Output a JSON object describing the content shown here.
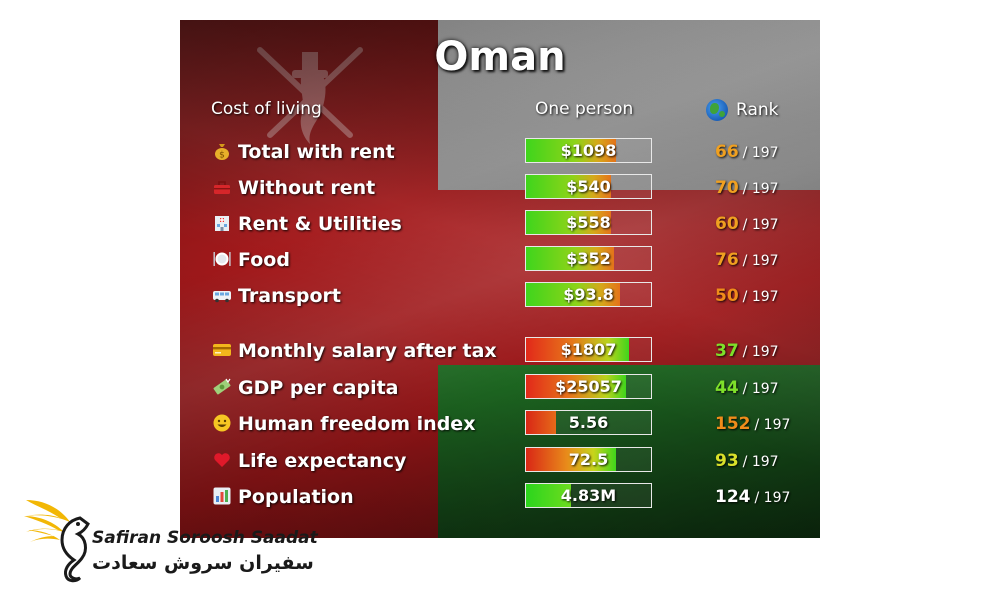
{
  "title": "Oman",
  "headers": {
    "cost_of_living": "Cost of living",
    "one_person": "One person",
    "rank": "Rank"
  },
  "rank_total": "/ 197",
  "rows": [
    {
      "label": "Total with rent",
      "icon": "money-bag-icon",
      "value": "$1098",
      "rank": "66",
      "rank_color": "#f0a020",
      "fill_pct": 72,
      "fill": "cost"
    },
    {
      "label": "Without rent",
      "icon": "toolbox-icon",
      "value": "$540",
      "rank": "70",
      "rank_color": "#f0a020",
      "fill_pct": 68,
      "fill": "cost"
    },
    {
      "label": "Rent & Utilities",
      "icon": "building-icon",
      "value": "$558",
      "rank": "60",
      "rank_color": "#f0a020",
      "fill_pct": 68,
      "fill": "cost"
    },
    {
      "label": "Food",
      "icon": "plate-icon",
      "value": "$352",
      "rank": "76",
      "rank_color": "#f0a020",
      "fill_pct": 70,
      "fill": "cost"
    },
    {
      "label": "Transport",
      "icon": "bus-icon",
      "value": "$93.8",
      "rank": "50",
      "rank_color": "#f08c1a",
      "fill_pct": 75,
      "fill": "cost"
    },
    {
      "label": "Monthly salary after tax",
      "icon": "credit-card-icon",
      "value": "$1807",
      "rank": "37",
      "rank_color": "#7ee02a",
      "fill_pct": 82,
      "fill": "sal"
    },
    {
      "label": "GDP per capita",
      "icon": "money-icon",
      "value": "$25057",
      "rank": "44",
      "rank_color": "#7ee02a",
      "fill_pct": 80,
      "fill": "sal"
    },
    {
      "label": "Human freedom index",
      "icon": "smiley-icon",
      "value": "5.56",
      "rank": "152",
      "rank_color": "#f08c1a",
      "fill_pct": 24,
      "fill": "hfi"
    },
    {
      "label": "Life expectancy",
      "icon": "heart-icon",
      "value": "72.5",
      "rank": "93",
      "rank_color": "#d9e02a",
      "fill_pct": 72,
      "fill": "life"
    },
    {
      "label": "Population",
      "icon": "bar-chart-icon",
      "value": "4.83M",
      "rank": "124",
      "rank_color": "#ffffff",
      "fill_pct": 36,
      "fill": "pop"
    }
  ],
  "logo": {
    "latin": "Safiran Soroosh Saadat",
    "persian": "سفیران سروش سعادت"
  }
}
